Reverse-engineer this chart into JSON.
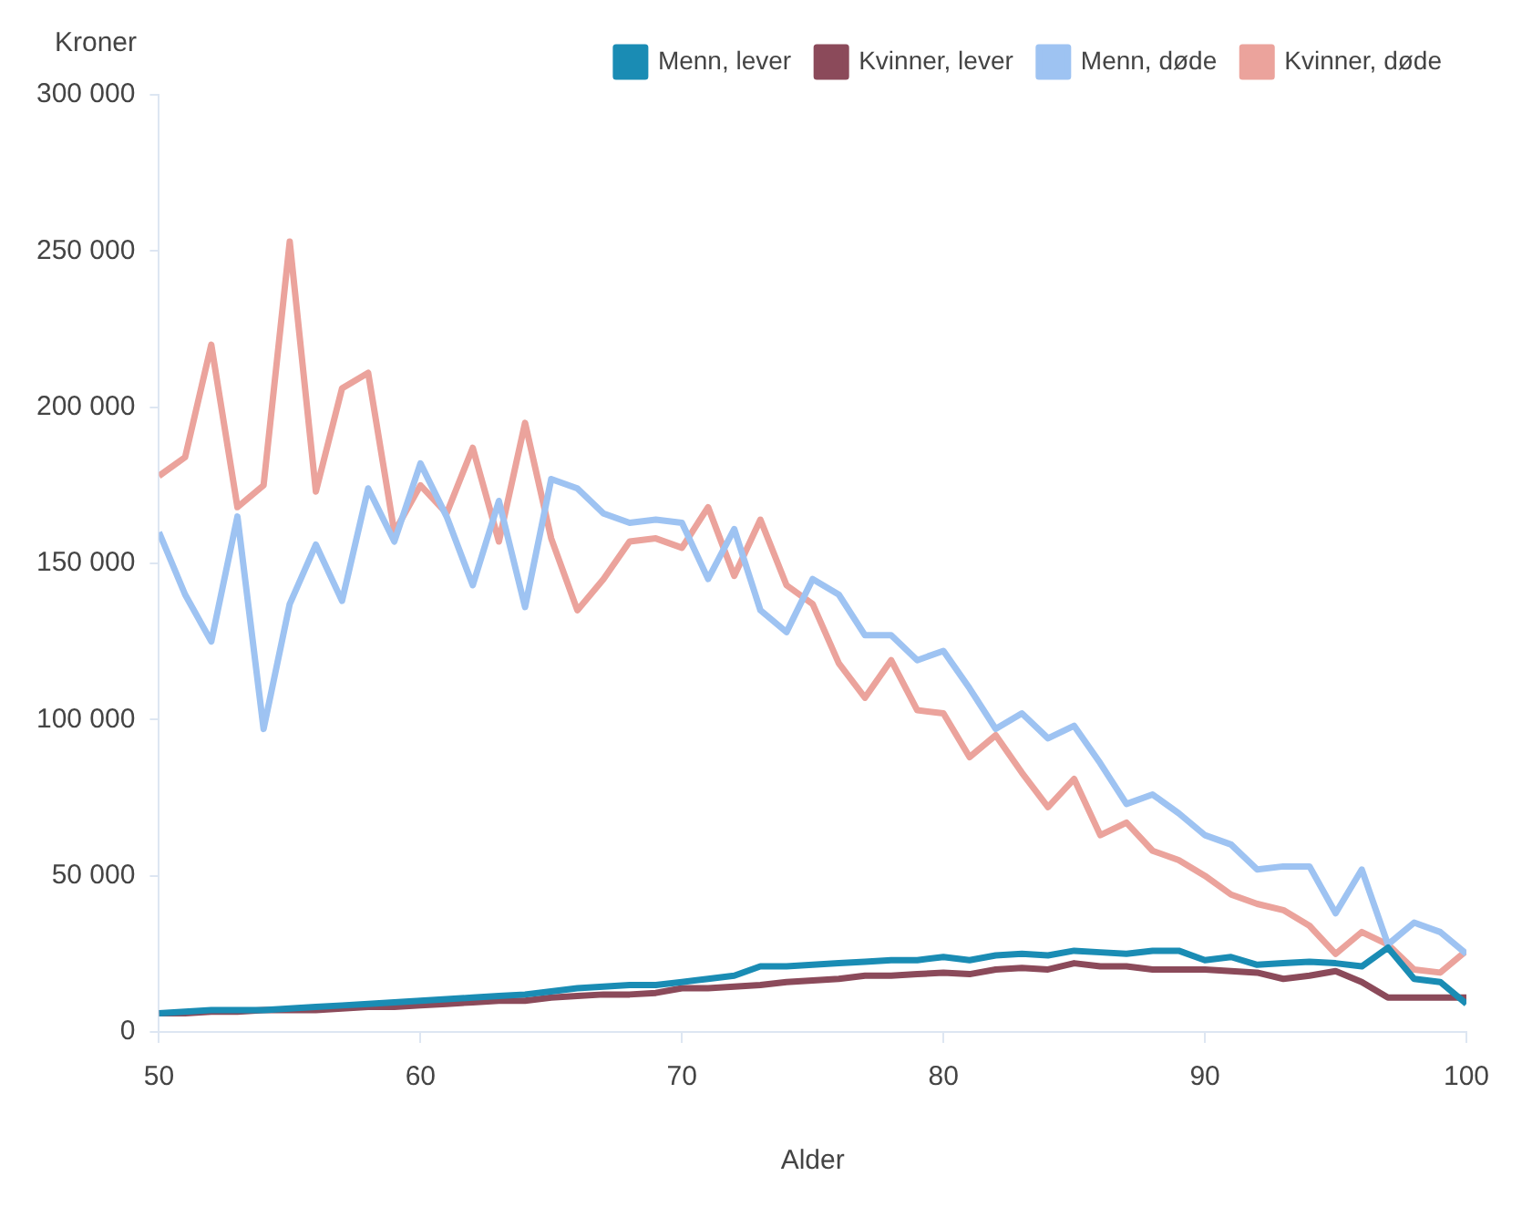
{
  "chart_data": {
    "type": "line",
    "xlabel": "Alder",
    "ylabel": "Kroner",
    "x": [
      50,
      51,
      52,
      53,
      54,
      55,
      56,
      57,
      58,
      59,
      60,
      61,
      62,
      63,
      64,
      65,
      66,
      67,
      68,
      69,
      70,
      71,
      72,
      73,
      74,
      75,
      76,
      77,
      78,
      79,
      80,
      81,
      82,
      83,
      84,
      85,
      86,
      87,
      88,
      89,
      90,
      91,
      92,
      93,
      94,
      95,
      96,
      97,
      98,
      99,
      100
    ],
    "series": [
      {
        "name": "Menn, lever",
        "color": "#1a8cb4",
        "values": [
          6000,
          6500,
          7000,
          7000,
          7000,
          7500,
          8000,
          8500,
          9000,
          9500,
          10000,
          10500,
          11000,
          11500,
          12000,
          13000,
          14000,
          14500,
          15000,
          15000,
          16000,
          17000,
          18000,
          21000,
          21000,
          21500,
          22000,
          22500,
          23000,
          23000,
          24000,
          23000,
          24500,
          25000,
          24500,
          26000,
          25500,
          25000,
          26000,
          26000,
          23000,
          24000,
          21500,
          22000,
          22500,
          22000,
          21000,
          27000,
          17000,
          16000,
          9000
        ]
      },
      {
        "name": "Kvinner, lever",
        "color": "#8b4a5a",
        "values": [
          6000,
          6000,
          6500,
          6500,
          7000,
          7000,
          7000,
          7500,
          8000,
          8000,
          8500,
          9000,
          9500,
          10000,
          10000,
          11000,
          11500,
          12000,
          12000,
          12500,
          14000,
          14000,
          14500,
          15000,
          16000,
          16500,
          17000,
          18000,
          18000,
          18500,
          19000,
          18500,
          20000,
          20500,
          20000,
          22000,
          21000,
          21000,
          20000,
          20000,
          20000,
          19500,
          19000,
          17000,
          18000,
          19500,
          16000,
          11000,
          11000,
          11000,
          11000
        ]
      },
      {
        "name": "Menn, døde",
        "color": "#9ec3f2",
        "values": [
          160000,
          140000,
          125000,
          165000,
          97000,
          137000,
          156000,
          138000,
          174000,
          157000,
          182000,
          165000,
          143000,
          170000,
          136000,
          177000,
          174000,
          166000,
          163000,
          164000,
          163000,
          145000,
          161000,
          135000,
          128000,
          145000,
          140000,
          127000,
          127000,
          119000,
          122000,
          110000,
          97000,
          102000,
          94000,
          98000,
          86000,
          73000,
          76000,
          70000,
          63000,
          60000,
          52000,
          53000,
          53000,
          38000,
          52000,
          28000,
          35000,
          32000,
          25000
        ]
      },
      {
        "name": "Kvinner, døde",
        "color": "#eba39c",
        "values": [
          178000,
          184000,
          220000,
          168000,
          175000,
          253000,
          173000,
          206000,
          211000,
          160000,
          175000,
          166000,
          187000,
          157000,
          195000,
          158000,
          135000,
          145000,
          157000,
          158000,
          155000,
          168000,
          146000,
          164000,
          143000,
          137000,
          118000,
          107000,
          119000,
          103000,
          102000,
          88000,
          95000,
          83000,
          72000,
          81000,
          63000,
          67000,
          58000,
          55000,
          50000,
          44000,
          41000,
          39000,
          34000,
          25000,
          32000,
          28000,
          20000,
          19000,
          26000
        ]
      }
    ],
    "xlim": [
      50,
      100
    ],
    "xticks": [
      50,
      60,
      70,
      80,
      90,
      100
    ],
    "ylim": [
      0,
      300000
    ],
    "yticks": [
      0,
      {
        "value": 50000,
        "label": "50 000"
      },
      {
        "value": 100000,
        "label": "100 000"
      },
      {
        "value": 150000,
        "label": "150 000"
      },
      {
        "value": 200000,
        "label": "200 000"
      },
      {
        "value": 250000,
        "label": "250 000"
      },
      {
        "value": 300000,
        "label": "300 000"
      }
    ],
    "legend": "top right",
    "grid": false,
    "marker": "none",
    "line_style": "solid"
  }
}
